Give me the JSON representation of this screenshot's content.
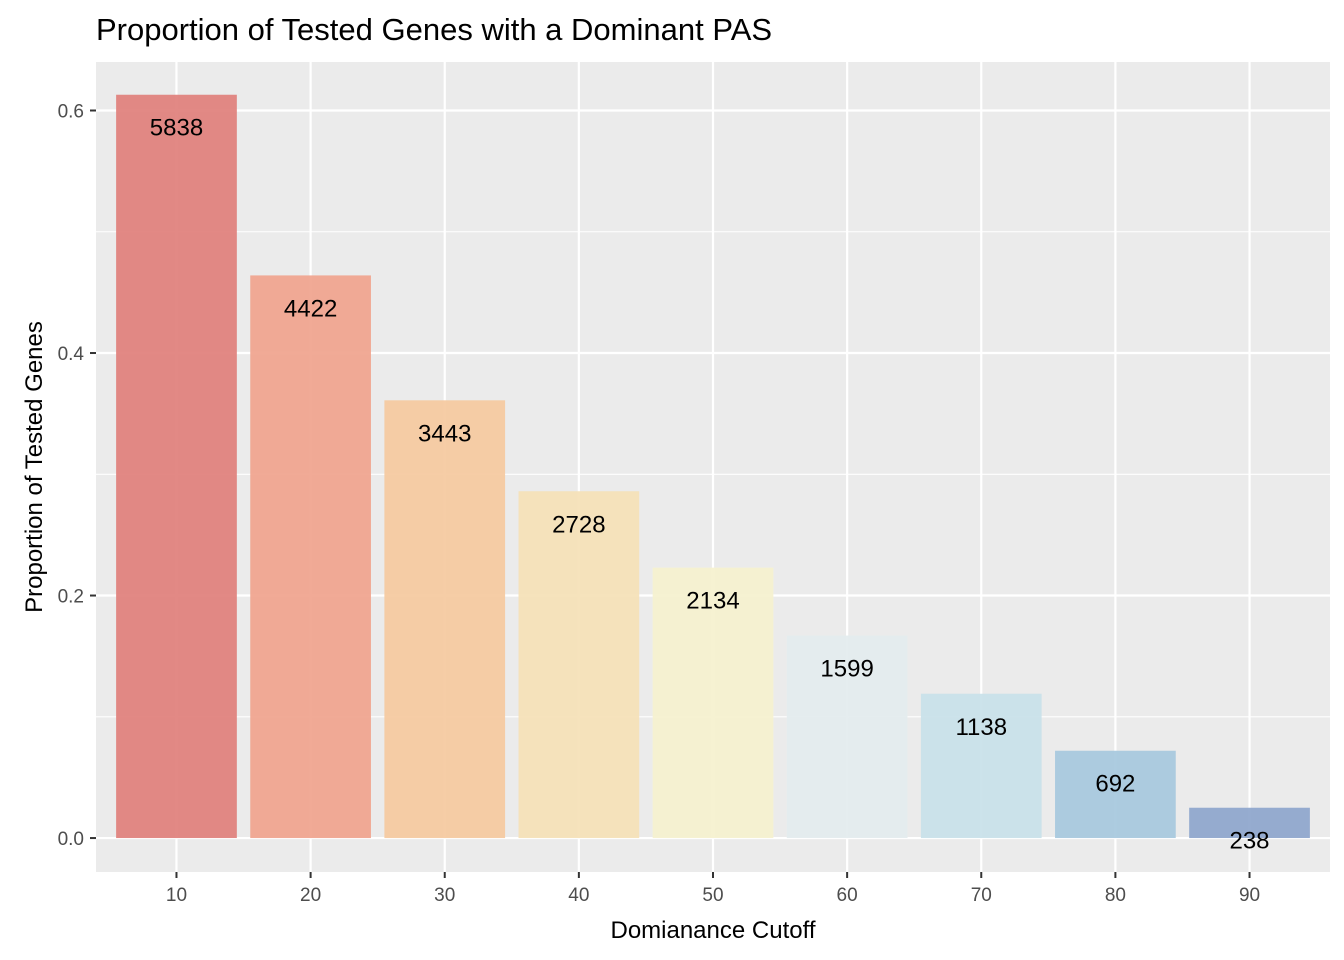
{
  "chart_data": {
    "type": "bar",
    "title": "Proportion of Tested Genes with a Dominant PAS",
    "xlabel": "Domianance Cutoff",
    "ylabel": "Proportion of Tested Genes",
    "x": [
      10,
      20,
      30,
      40,
      50,
      60,
      70,
      80,
      90
    ],
    "values": [
      0.613,
      0.464,
      0.361,
      0.286,
      0.223,
      0.167,
      0.119,
      0.072,
      0.025
    ],
    "labels": [
      "5838",
      "4422",
      "3443",
      "2728",
      "2134",
      "1599",
      "1138",
      "692",
      "238"
    ],
    "colors": [
      "#e0837e",
      "#f0a590",
      "#f5caa1",
      "#f5e2b8",
      "#f5f1d0",
      "#e4ecee",
      "#c9e1ea",
      "#a9c9de",
      "#90a8cd"
    ],
    "xlim": [
      4,
      96
    ],
    "ylim": [
      -0.028,
      0.64
    ],
    "x_ticks": [
      10,
      20,
      30,
      40,
      50,
      60,
      70,
      80,
      90
    ],
    "x_tick_labels": [
      "10",
      "20",
      "30",
      "40",
      "50",
      "60",
      "70",
      "80",
      "90"
    ],
    "y_ticks": [
      0.0,
      0.2,
      0.4,
      0.6
    ],
    "y_tick_labels": [
      "0.0",
      "0.2",
      "0.4",
      "0.6"
    ],
    "y_minor_ticks": [
      0.1,
      0.3,
      0.5
    ],
    "grid": true,
    "legend": "none"
  }
}
